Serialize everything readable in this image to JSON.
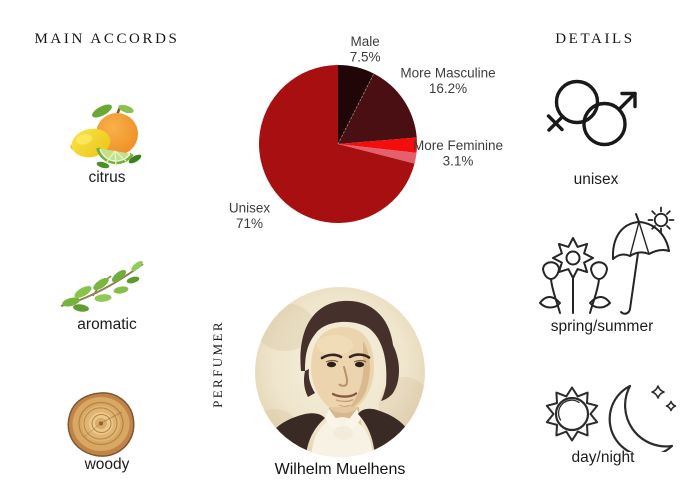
{
  "headings": {
    "main_accords": "MAIN ACCORDS",
    "details": "DETAILS",
    "perfumer": "PERFUMER"
  },
  "accords": [
    {
      "label": "citrus",
      "icon": "citrus-fruits-icon"
    },
    {
      "label": "aromatic",
      "icon": "herb-sprig-icon"
    },
    {
      "label": "woody",
      "icon": "wood-slice-icon"
    }
  ],
  "details": [
    {
      "label": "unisex",
      "icon": "gender-unisex-icon"
    },
    {
      "label": "spring/summer",
      "icon": "flowers-umbrella-sun-icon"
    },
    {
      "label": "day/night",
      "icon": "sun-moon-icon"
    }
  ],
  "perfumer": {
    "name": "Wilhelm Muelhens"
  },
  "chart_data": {
    "type": "pie",
    "title": "",
    "legend_position": "none",
    "start_angle_deg": 0,
    "direction": "clockwise",
    "divider_after_index": 0,
    "label_color": "#3d3d3d",
    "slices": [
      {
        "label": "Male",
        "pct_label": "7.5%",
        "value": 7.5,
        "color": "#200607",
        "label_nudge": [
          1,
          3
        ]
      },
      {
        "label": "More Masculine",
        "pct_label": "16.2%",
        "value": 16.2,
        "color": "#4a0f12",
        "label_nudge": [
          17,
          -12
        ]
      },
      {
        "label": "More Feminine",
        "pct_label": "3.1%",
        "value": 3.1,
        "color": "#f50d0d",
        "label_nudge": [
          8,
          -4
        ]
      },
      {
        "label": "",
        "pct_label": "",
        "value": 2.2,
        "color": "#e4606b"
      },
      {
        "label": "Unisex",
        "pct_label": "71%",
        "value": 71,
        "color": "#a80f10",
        "label_nudge": [
          0,
          -8
        ]
      }
    ]
  }
}
